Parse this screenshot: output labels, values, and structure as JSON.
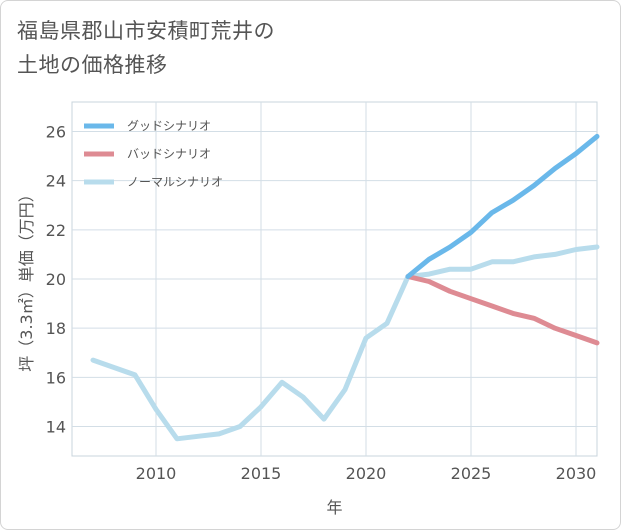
{
  "title": "福島県郡山市安積町荒井の\n土地の価格推移",
  "chart_data": {
    "type": "line",
    "title": "福島県郡山市安積町荒井の土地の価格推移",
    "xlabel": "年",
    "ylabel": "坪（3.3㎡）単価（万円）",
    "xlim": [
      2006,
      2031
    ],
    "ylim": [
      12.8,
      27.2
    ],
    "xticks": [
      2010,
      2015,
      2020,
      2025,
      2030
    ],
    "yticks": [
      14,
      16,
      18,
      20,
      22,
      24,
      26
    ],
    "grid": true,
    "legend_position": "top-left",
    "series": [
      {
        "name": "グッドシナリオ",
        "color": "#6ab8ea",
        "x": [
          2022,
          2023,
          2024,
          2025,
          2026,
          2027,
          2028,
          2029,
          2030,
          2031
        ],
        "y": [
          20.1,
          20.8,
          21.3,
          21.9,
          22.7,
          23.2,
          23.8,
          24.5,
          25.1,
          25.8
        ]
      },
      {
        "name": "バッドシナリオ",
        "color": "#de8b93",
        "x": [
          2022,
          2023,
          2024,
          2025,
          2026,
          2027,
          2028,
          2029,
          2030,
          2031
        ],
        "y": [
          20.1,
          19.9,
          19.5,
          19.2,
          18.9,
          18.6,
          18.4,
          18.0,
          17.7,
          17.4
        ]
      },
      {
        "name": "ノーマルシナリオ",
        "color": "#b8dcec",
        "x": [
          2007,
          2008,
          2009,
          2010,
          2011,
          2012,
          2013,
          2014,
          2015,
          2016,
          2017,
          2018,
          2019,
          2020,
          2021,
          2022,
          2023,
          2024,
          2025,
          2026,
          2027,
          2028,
          2029,
          2030,
          2031
        ],
        "y": [
          16.7,
          16.4,
          16.1,
          14.7,
          13.5,
          13.6,
          13.7,
          14.0,
          14.8,
          15.8,
          15.2,
          14.3,
          15.5,
          17.6,
          18.2,
          20.1,
          20.2,
          20.4,
          20.4,
          20.7,
          20.7,
          20.9,
          21.0,
          21.2,
          21.3
        ]
      }
    ]
  }
}
